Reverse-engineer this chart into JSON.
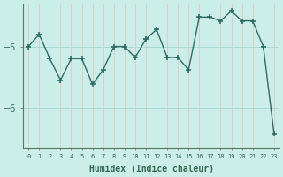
{
  "x": [
    0,
    1,
    2,
    3,
    4,
    5,
    6,
    7,
    8,
    9,
    10,
    11,
    12,
    13,
    14,
    15,
    16,
    17,
    18,
    19,
    20,
    21,
    22,
    23
  ],
  "y": [
    -5.0,
    -4.8,
    -5.2,
    -5.55,
    -5.2,
    -5.2,
    -5.62,
    -5.38,
    -5.0,
    -5.0,
    -5.18,
    -4.88,
    -4.72,
    -5.18,
    -5.18,
    -5.38,
    -4.52,
    -4.52,
    -4.58,
    -4.42,
    -4.58,
    -4.58,
    -5.0,
    -6.42
  ],
  "xlabel": "Humidex (Indice chaleur)",
  "bg_color": "#cceee8",
  "line_color": "#2d6b60",
  "hgrid_color": "#aad8d0",
  "vgrid_color": "#ddc8c8",
  "yticks": [
    -6,
    -5
  ],
  "ylim": [
    -6.65,
    -4.3
  ],
  "xlim": [
    -0.5,
    23.5
  ],
  "tick_label_color": "#336655"
}
